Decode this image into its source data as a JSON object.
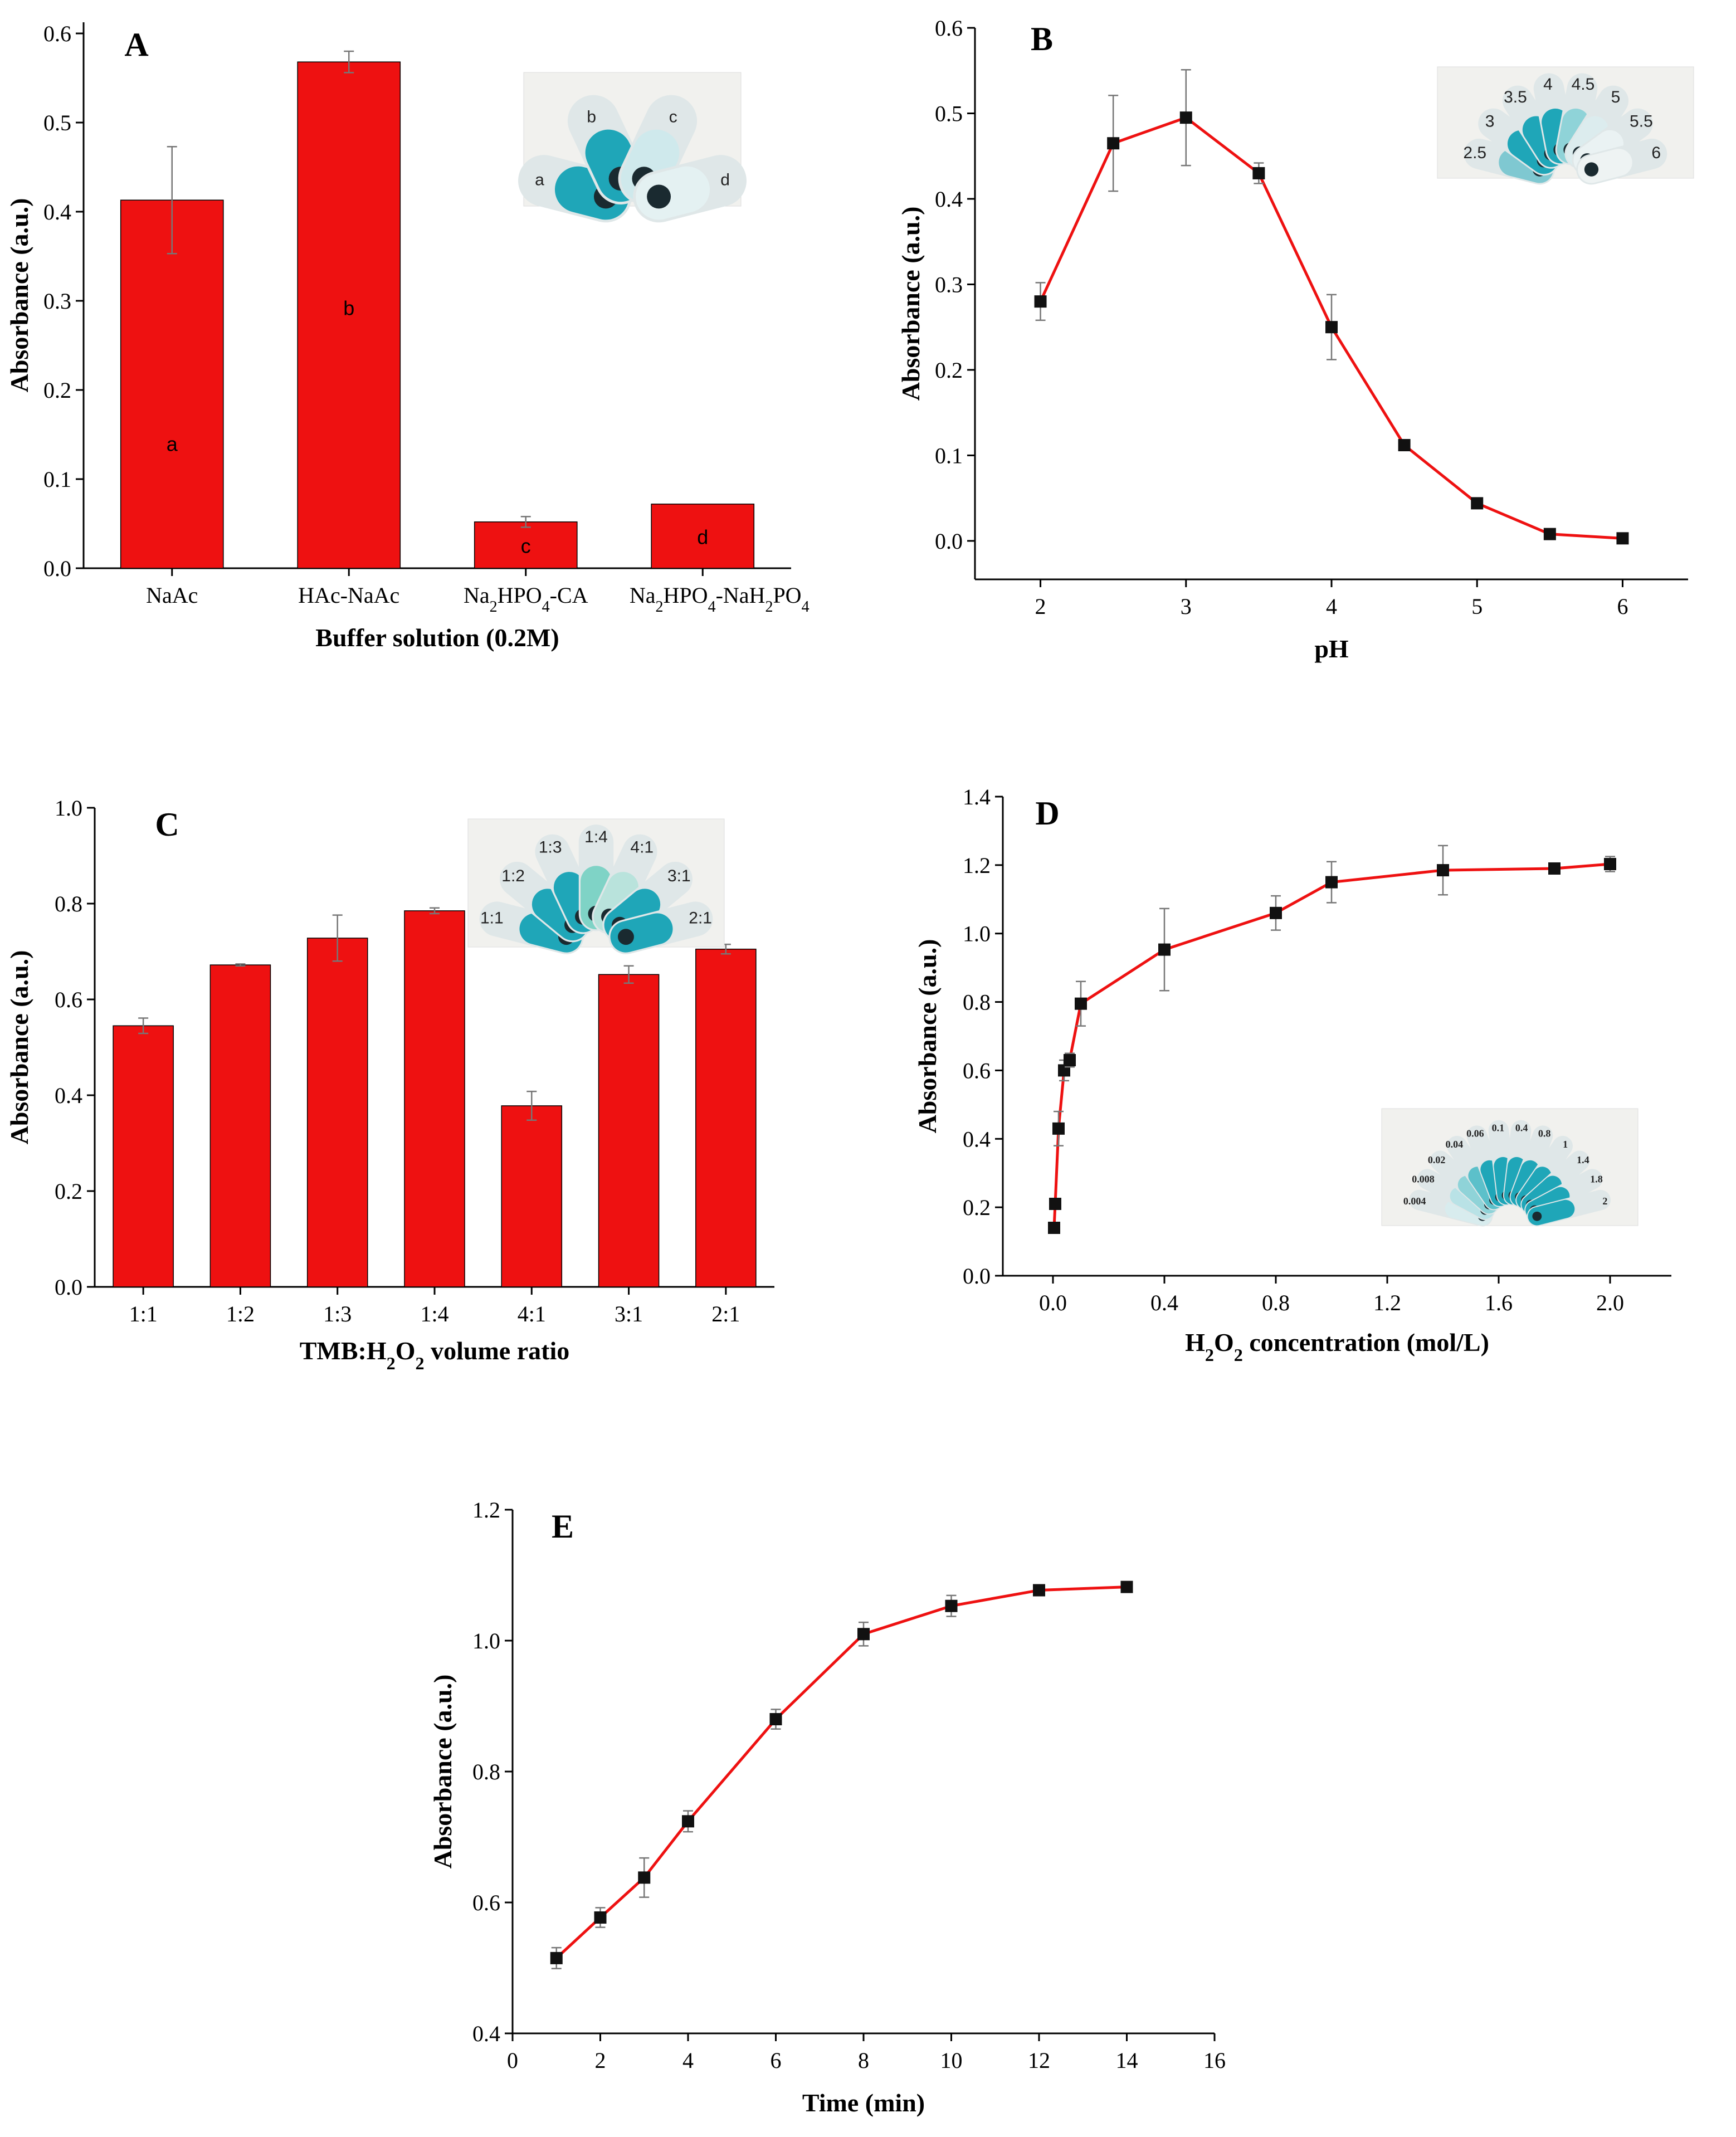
{
  "figure": {
    "colors": {
      "bar": "#ee1111",
      "line": "#ee1111",
      "marker": "#111111",
      "errorbar": "#777777",
      "tube_blue": "#1fa6b8"
    }
  },
  "chart_data": [
    {
      "id": "A",
      "type": "bar",
      "panel_letter": "A",
      "categories": [
        "NaAc",
        "HAc-NaAc",
        "Na2HPO4-CA",
        "Na2HPO4-NaH2PO4"
      ],
      "category_parts": [
        [
          {
            "t": "NaAc",
            "sub": false
          }
        ],
        [
          {
            "t": "HAc-NaAc",
            "sub": false
          }
        ],
        [
          {
            "t": "Na",
            "sub": false
          },
          {
            "t": "2",
            "sub": true
          },
          {
            "t": "HPO",
            "sub": false
          },
          {
            "t": "4",
            "sub": true
          },
          {
            "t": "-CA",
            "sub": false
          }
        ],
        [
          {
            "t": "Na",
            "sub": false
          },
          {
            "t": "2",
            "sub": true
          },
          {
            "t": "HPO",
            "sub": false
          },
          {
            "t": "4",
            "sub": true
          },
          {
            "t": "-NaH",
            "sub": false
          },
          {
            "t": "2",
            "sub": true
          },
          {
            "t": "PO",
            "sub": false
          },
          {
            "t": "4",
            "sub": true
          }
        ]
      ],
      "values": [
        0.413,
        0.568,
        0.052,
        0.072
      ],
      "errors": [
        0.06,
        0.012,
        0.006,
        0.0
      ],
      "bar_labels": [
        "a",
        "b",
        "c",
        "d"
      ],
      "xlabel": "Buffer solution (0.2M)",
      "ylabel": "Absorbance (a.u.)",
      "ylim": [
        0,
        0.6
      ],
      "yticks": [
        "0.0",
        "0.1",
        "0.2",
        "0.3",
        "0.4",
        "0.5",
        "0.6"
      ],
      "inset_labels": [
        "a",
        "b",
        "c",
        "d"
      ]
    },
    {
      "id": "B",
      "type": "line",
      "panel_letter": "B",
      "x": [
        2,
        2.5,
        3,
        3.5,
        4,
        4.5,
        5,
        5.5,
        6
      ],
      "y": [
        0.28,
        0.465,
        0.495,
        0.43,
        0.25,
        0.112,
        0.044,
        0.008,
        0.003
      ],
      "errors": [
        0.022,
        0.056,
        0.056,
        0.012,
        0.038,
        0.003,
        0.003,
        0.002,
        0.002
      ],
      "xlabel": "pH",
      "ylabel": "Absorbance (a.u.)",
      "xlim": [
        1.55,
        6.45
      ],
      "ylim": [
        -0.045,
        0.6
      ],
      "xticks": [
        "2",
        "3",
        "4",
        "5",
        "6"
      ],
      "yticks": [
        "0.0",
        "0.1",
        "0.2",
        "0.3",
        "0.4",
        "0.5",
        "0.6"
      ],
      "inset_labels": [
        "2.5",
        "3",
        "3.5",
        "4",
        "4.5",
        "5",
        "5.5",
        "6"
      ]
    },
    {
      "id": "C",
      "type": "bar",
      "panel_letter": "C",
      "categories": [
        "1:1",
        "1:2",
        "1:3",
        "1:4",
        "4:1",
        "3:1",
        "2:1"
      ],
      "values": [
        0.545,
        0.672,
        0.728,
        0.785,
        0.378,
        0.652,
        0.705
      ],
      "errors": [
        0.016,
        0.002,
        0.048,
        0.006,
        0.03,
        0.018,
        0.01
      ],
      "xlabel_parts": [
        {
          "t": "TMB:H",
          "sub": false
        },
        {
          "t": "2",
          "sub": true
        },
        {
          "t": "O",
          "sub": false
        },
        {
          "t": "2",
          "sub": true
        },
        {
          "t": " volume ratio",
          "sub": false
        }
      ],
      "xlabel": "TMB:H2O2 volume ratio",
      "ylabel": "Absorbance (a.u.)",
      "ylim": [
        0,
        1.0
      ],
      "yticks": [
        "0.0",
        "0.2",
        "0.4",
        "0.6",
        "0.8",
        "1.0"
      ],
      "inset_labels": [
        "1:1",
        "1:2",
        "1:3",
        "1:4",
        "4:1",
        "3:1",
        "2:1"
      ]
    },
    {
      "id": "D",
      "type": "line",
      "panel_letter": "D",
      "x": [
        0.004,
        0.008,
        0.02,
        0.04,
        0.06,
        0.1,
        0.4,
        0.8,
        1.0,
        1.4,
        1.8,
        2.0
      ],
      "y": [
        0.14,
        0.21,
        0.43,
        0.6,
        0.63,
        0.795,
        0.953,
        1.06,
        1.15,
        1.185,
        1.19,
        1.203
      ],
      "errors": [
        0.0,
        0.0,
        0.05,
        0.03,
        0.02,
        0.065,
        0.12,
        0.05,
        0.06,
        0.072,
        0.0,
        0.022
      ],
      "xlabel_parts": [
        {
          "t": "H",
          "sub": false
        },
        {
          "t": "2",
          "sub": true
        },
        {
          "t": "O",
          "sub": false
        },
        {
          "t": "2",
          "sub": true
        },
        {
          "t": " concentration (mol/L)",
          "sub": false
        }
      ],
      "xlabel": "H2O2 concentration (mol/L)",
      "ylabel": "Absorbance (a.u.)",
      "xlim": [
        -0.18,
        2.22
      ],
      "ylim": [
        0,
        1.4
      ],
      "xticks": [
        "0.0",
        "0.4",
        "0.8",
        "1.2",
        "1.6",
        "2.0"
      ],
      "yticks": [
        "0.0",
        "0.2",
        "0.4",
        "0.6",
        "0.8",
        "1.0",
        "1.2",
        "1.4"
      ],
      "inset_labels": [
        "0.004",
        "0.008",
        "0.02",
        "0.04",
        "0.06",
        "0.1",
        "0.4",
        "0.8",
        "1",
        "1.4",
        "1.8",
        "2"
      ]
    },
    {
      "id": "E",
      "type": "line",
      "panel_letter": "E",
      "x": [
        1,
        2,
        3,
        4,
        6,
        8,
        10,
        12,
        14
      ],
      "y": [
        0.515,
        0.577,
        0.638,
        0.724,
        0.88,
        1.01,
        1.053,
        1.077,
        1.082
      ],
      "errors": [
        0.016,
        0.015,
        0.03,
        0.016,
        0.015,
        0.018,
        0.016,
        0.004,
        0.003
      ],
      "xlabel": "Time (min)",
      "ylabel": "Absorbance (a.u.)",
      "xlim": [
        0,
        16
      ],
      "ylim": [
        0.4,
        1.2
      ],
      "xticks": [
        "0",
        "2",
        "4",
        "6",
        "8",
        "10",
        "12",
        "14",
        "16"
      ],
      "yticks": [
        "0.4",
        "0.6",
        "0.8",
        "1.0",
        "1.2"
      ]
    }
  ]
}
